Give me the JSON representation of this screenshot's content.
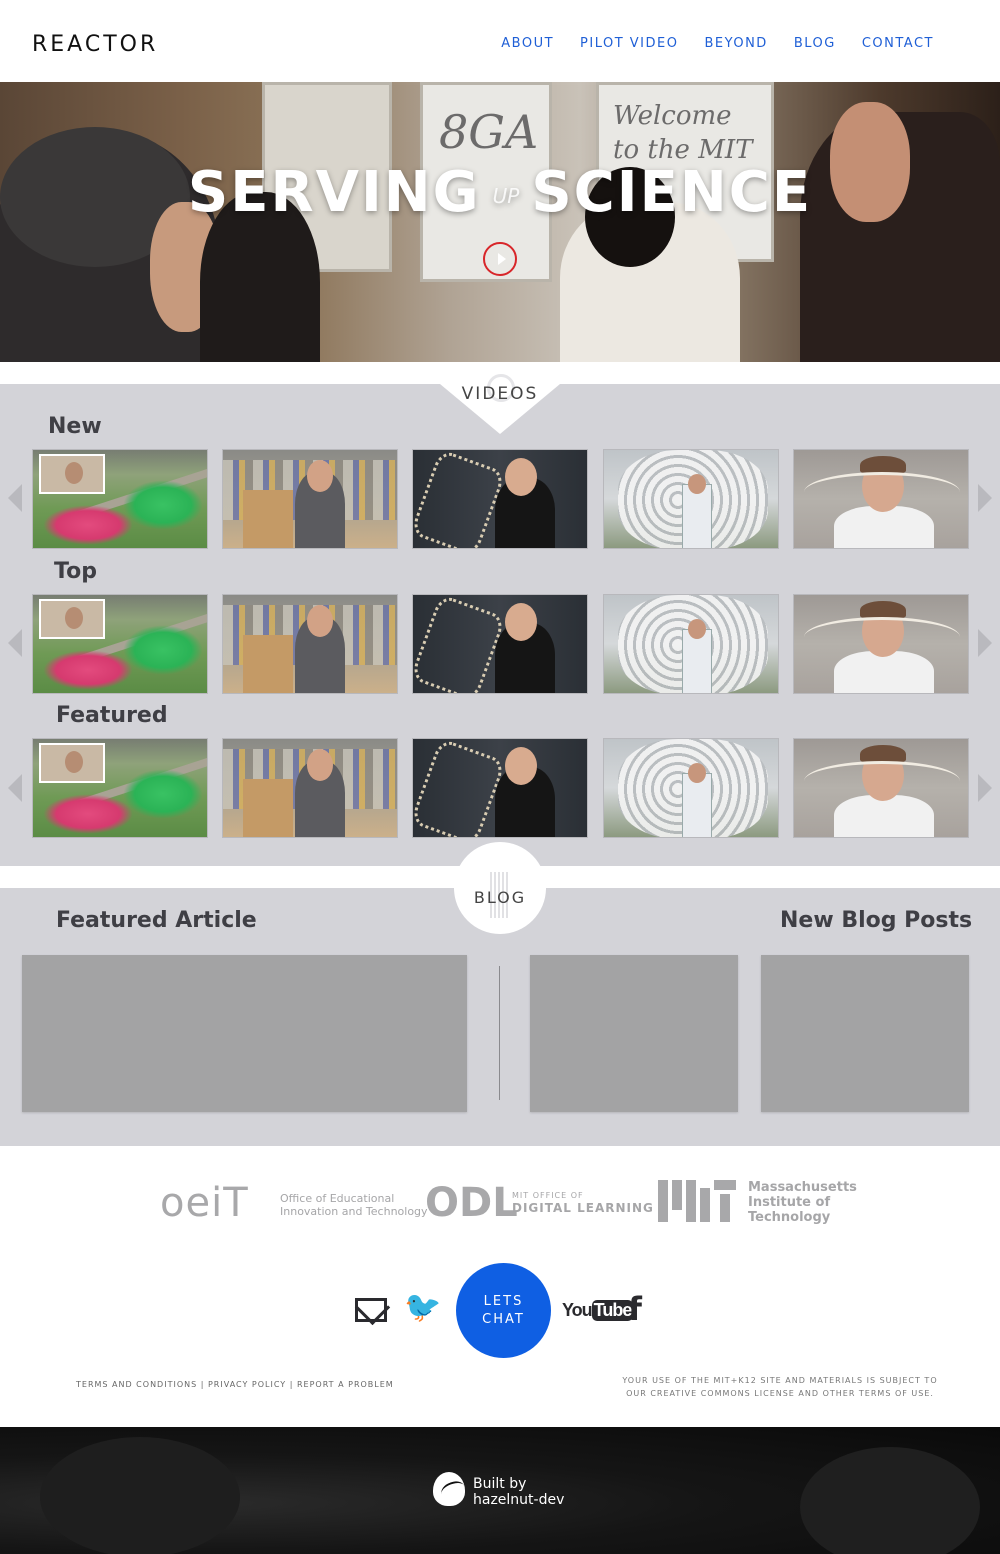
{
  "header": {
    "brand": "REACTOR",
    "nav": [
      "ABOUT",
      "PILOT VIDEO",
      "BEYOND",
      "BLOG",
      "CONTACT"
    ],
    "link_color": "#1f5fd6"
  },
  "hero": {
    "title_left": "SERVING",
    "title_up": "UP",
    "title_right": "SCIENCE",
    "board1_text": "8GA",
    "board2_text": "Welcome to the MIT"
  },
  "videos": {
    "section_label": "VIDEOS",
    "rows": [
      {
        "label": "New"
      },
      {
        "label": "Top"
      },
      {
        "label": "Featured"
      }
    ],
    "thumbnails": [
      "campus-lawn-crowd",
      "workshop-shelves",
      "molecule-model",
      "white-sculpture",
      "lab-coat-rod"
    ]
  },
  "blog": {
    "section_label": "BLOG",
    "featured_heading": "Featured Article",
    "new_heading": "New Blog Posts"
  },
  "partners": {
    "oeit_mark": "oeiT",
    "oeit_text_1": "Office of Educational",
    "oeit_text_2": "Innovation and Technology",
    "odl_mark": "ODL",
    "odl_text_1": "MIT OFFICE OF",
    "odl_text_2": "DIGITAL LEARNING",
    "mit_text_1": "Massachusetts",
    "mit_text_2": "Institute of",
    "mit_text_3": "Technology"
  },
  "social": {
    "chat_line1": "LETS",
    "chat_line2": "CHAT",
    "chat_color": "#0f5fe3",
    "youtube_you": "You",
    "youtube_tube": "Tube",
    "facebook": "f",
    "twitter_glyph": "🐦"
  },
  "legal": {
    "terms": "TERMS AND CONDITIONS",
    "privacy": "PRIVACY POLICY",
    "report": "REPORT A PROBLEM",
    "sep": "|",
    "notice_1": "YOUR USE OF THE MIT+K12 SITE AND MATERIALS IS SUBJECT TO",
    "notice_2": "OUR CREATIVE COMMONS LICENSE AND OTHER TERMS OF USE."
  },
  "footer": {
    "built_line1": "Built by",
    "built_line2": "hazelnut-dev"
  }
}
